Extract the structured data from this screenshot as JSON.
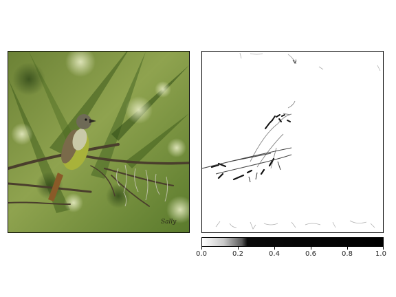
{
  "figure": {
    "left_panel": {
      "icon": "bird-photo",
      "watermark": "Sally"
    },
    "right_panel": {
      "icon": "saliency-map"
    },
    "colorbar": {
      "ticks": [
        "0.0",
        "0.2",
        "0.4",
        "0.6",
        "0.8",
        "1.0"
      ],
      "colormap": "grayscale-reversed",
      "gradient_colors": [
        "#ffffff",
        "#000000"
      ]
    }
  }
}
